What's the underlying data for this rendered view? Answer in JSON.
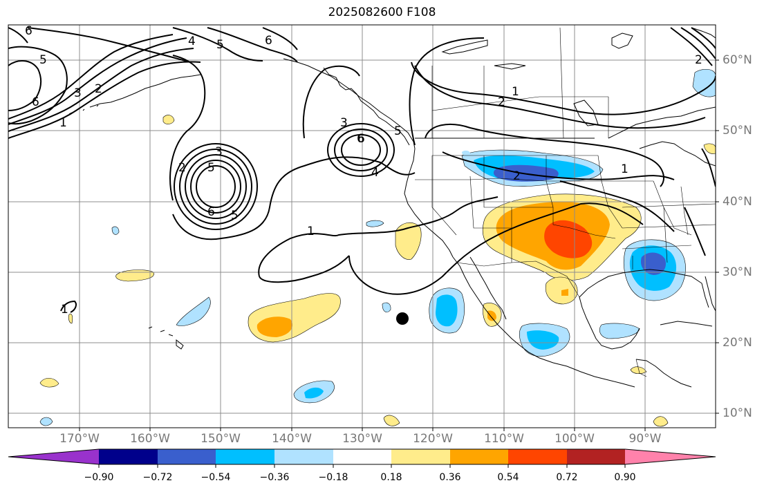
{
  "title": "2025082600 F108",
  "lat_labels": [
    "60°N",
    "50°N",
    "40°N",
    "30°N",
    "20°N",
    "10°N"
  ],
  "lon_labels": [
    "170°W",
    "160°W",
    "150°W",
    "140°W",
    "130°W",
    "120°W",
    "110°W",
    "100°W",
    "90°W"
  ],
  "colorbar": {
    "ticks": [
      "−0.90",
      "−0.72",
      "−0.54",
      "−0.36",
      "−0.18",
      "0.18",
      "0.36",
      "0.54",
      "0.72",
      "0.90"
    ],
    "colors": [
      "#9932cc",
      "#00008b",
      "#3a5fcd",
      "#00bfff",
      "#b0e2ff",
      "#ffffff",
      "#ffec8b",
      "#ffa500",
      "#ff4500",
      "#b22222",
      "#ff82ab"
    ]
  },
  "contour_labels": [
    "6",
    "5",
    "6",
    "4",
    "5",
    "6",
    "3",
    "2",
    "1",
    "5",
    "3",
    "2",
    "6",
    "5",
    "6",
    "4",
    "1",
    "3",
    "6",
    "5",
    "2",
    "1",
    "2",
    "1",
    "2",
    "1"
  ],
  "marker": "storm-center-dot"
}
